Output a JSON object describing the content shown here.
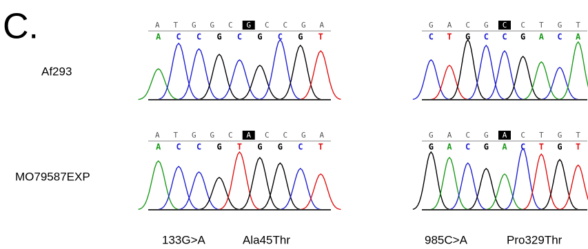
{
  "panel_label": "C.",
  "strains": [
    "Af293",
    "MO79587EXP"
  ],
  "panels": [
    {
      "top_before": [
        "A",
        "T",
        "G",
        "G",
        "C"
      ],
      "variant": "G",
      "top_after": [
        "C",
        "C",
        "G",
        "A"
      ],
      "calls": [
        "A",
        "C",
        "C",
        "G",
        "C",
        "G",
        "C",
        "G",
        "T"
      ]
    },
    {
      "top_before": [
        "G",
        "A",
        "C",
        "G"
      ],
      "variant": "C",
      "top_after": [
        "C",
        "T",
        "G",
        "T"
      ],
      "calls": [
        "C",
        "T",
        "G",
        "C",
        "C",
        "G",
        "A",
        "C",
        "A"
      ]
    },
    {
      "top_before": [
        "A",
        "T",
        "G",
        "G",
        "C"
      ],
      "variant": "A",
      "top_after": [
        "C",
        "C",
        "G",
        "A"
      ],
      "calls": [
        "A",
        "C",
        "C",
        "G",
        "T",
        "G",
        "G",
        "C",
        "T"
      ]
    },
    {
      "top_before": [
        "G",
        "A",
        "C",
        "G"
      ],
      "variant": "A",
      "top_after": [
        "C",
        "T",
        "G",
        "T"
      ],
      "calls": [
        "G",
        "A",
        "C",
        "G",
        "A",
        "C",
        "T",
        "G",
        "T"
      ]
    }
  ],
  "annotations": [
    "133G>A",
    "Ala45Thr",
    "985C>A",
    "Pro329Thr"
  ]
}
